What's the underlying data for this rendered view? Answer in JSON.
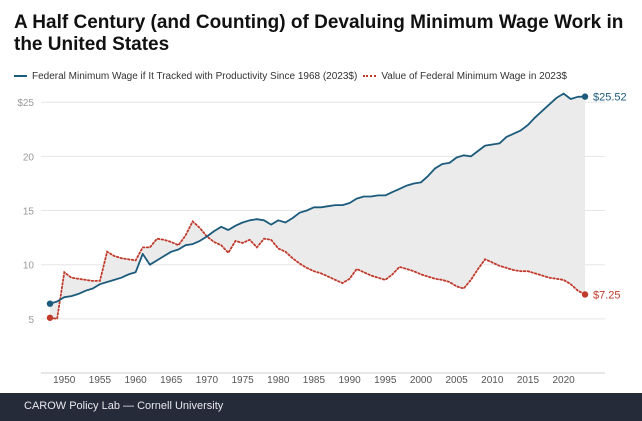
{
  "title": "A Half Century (and Counting) of Devaluing Minimum Wage Work in the United States",
  "footer": "CAROW Policy Lab — Cornell University",
  "colors": {
    "productivity": "#1c5b7c",
    "actual": "#c0392b",
    "fill": "#ebebeb",
    "grid": "#e6e6e6",
    "tick": "#9a9a9a",
    "footer_bg": "#262b3a"
  },
  "chart_data": {
    "type": "line",
    "title": "A Half Century (and Counting) of Devaluing Minimum Wage Work in the United States",
    "xlabel": "",
    "ylabel": "",
    "xlim": [
      1947.3,
      2024.4
    ],
    "ylim": [
      0,
      26.5
    ],
    "grid": true,
    "legend_position": "top-left",
    "y_ticks": [
      5,
      10,
      15,
      20,
      25
    ],
    "y_tick_labels": [
      "5",
      "10",
      "15",
      "20",
      "$25"
    ],
    "x_ticks": [
      1950,
      1955,
      1960,
      1965,
      1970,
      1975,
      1980,
      1985,
      1990,
      1995,
      2000,
      2005,
      2010,
      2015,
      2020
    ],
    "x_tick_labels": [
      "1950",
      "1955",
      "1960",
      "1965",
      "1970",
      "1975",
      "1980",
      "1985",
      "1990",
      "1995",
      "2000",
      "2005",
      "2010",
      "2015",
      "2020"
    ],
    "shaded_between_series": true,
    "series": [
      {
        "name": "Federal Minimum Wage if It Tracked with Productivity Since 1968 (2023$)",
        "style": "solid",
        "color": "#1c5b7c",
        "end_label": "$25.52",
        "x": [
          1948,
          1949,
          1950,
          1951,
          1952,
          1953,
          1954,
          1955,
          1956,
          1957,
          1958,
          1959,
          1960,
          1961,
          1962,
          1963,
          1964,
          1965,
          1966,
          1967,
          1968,
          1969,
          1970,
          1971,
          1972,
          1973,
          1974,
          1975,
          1976,
          1977,
          1978,
          1979,
          1980,
          1981,
          1982,
          1983,
          1984,
          1985,
          1986,
          1987,
          1988,
          1989,
          1990,
          1991,
          1992,
          1993,
          1994,
          1995,
          1996,
          1997,
          1998,
          1999,
          2000,
          2001,
          2002,
          2003,
          2004,
          2005,
          2006,
          2007,
          2008,
          2009,
          2010,
          2011,
          2012,
          2013,
          2014,
          2015,
          2016,
          2017,
          2018,
          2019,
          2020,
          2021,
          2022,
          2023
        ],
        "y": [
          6.4,
          6.6,
          7.0,
          7.1,
          7.3,
          7.6,
          7.8,
          8.2,
          8.4,
          8.6,
          8.8,
          9.1,
          9.3,
          11.0,
          10.0,
          10.4,
          10.8,
          11.2,
          11.4,
          11.8,
          11.9,
          12.2,
          12.6,
          13.1,
          13.5,
          13.2,
          13.6,
          13.9,
          14.1,
          14.2,
          14.1,
          13.7,
          14.1,
          13.9,
          14.3,
          14.8,
          15.0,
          15.3,
          15.3,
          15.4,
          15.5,
          15.5,
          15.7,
          16.1,
          16.3,
          16.3,
          16.4,
          16.4,
          16.7,
          17.0,
          17.3,
          17.5,
          17.6,
          18.2,
          18.9,
          19.3,
          19.4,
          19.9,
          20.1,
          20.0,
          20.5,
          21.0,
          21.1,
          21.2,
          21.8,
          22.1,
          22.4,
          22.9,
          23.6,
          24.2,
          24.8,
          25.4,
          25.8,
          25.3,
          25.5,
          25.52
        ]
      },
      {
        "name": "Value of Federal Minimum Wage in 2023$",
        "style": "dotted",
        "color": "#c0392b",
        "end_label": "$7.25",
        "x": [
          1948,
          1949,
          1950,
          1951,
          1952,
          1953,
          1954,
          1955,
          1956,
          1957,
          1958,
          1959,
          1960,
          1961,
          1962,
          1963,
          1964,
          1965,
          1966,
          1967,
          1968,
          1969,
          1970,
          1971,
          1972,
          1973,
          1974,
          1975,
          1976,
          1977,
          1978,
          1979,
          1980,
          1981,
          1982,
          1983,
          1984,
          1985,
          1986,
          1987,
          1988,
          1989,
          1990,
          1991,
          1992,
          1993,
          1994,
          1995,
          1996,
          1997,
          1998,
          1999,
          2000,
          2001,
          2002,
          2003,
          2004,
          2005,
          2006,
          2007,
          2008,
          2009,
          2010,
          2011,
          2012,
          2013,
          2014,
          2015,
          2016,
          2017,
          2018,
          2019,
          2020,
          2021,
          2022,
          2023
        ],
        "y": [
          5.1,
          5.0,
          9.3,
          8.8,
          8.7,
          8.6,
          8.5,
          8.5,
          11.2,
          10.8,
          10.6,
          10.5,
          10.4,
          11.6,
          11.6,
          12.4,
          12.3,
          12.1,
          11.8,
          12.7,
          14.0,
          13.4,
          12.6,
          12.1,
          11.8,
          11.1,
          12.2,
          12.0,
          12.3,
          11.6,
          12.4,
          12.3,
          11.5,
          11.2,
          10.6,
          10.1,
          9.7,
          9.4,
          9.2,
          8.9,
          8.6,
          8.3,
          8.7,
          9.6,
          9.3,
          9.0,
          8.8,
          8.6,
          9.1,
          9.8,
          9.6,
          9.4,
          9.1,
          8.9,
          8.7,
          8.6,
          8.4,
          8.0,
          7.8,
          8.6,
          9.6,
          10.5,
          10.2,
          9.9,
          9.7,
          9.5,
          9.4,
          9.4,
          9.2,
          9.0,
          8.8,
          8.7,
          8.6,
          8.2,
          7.6,
          7.25
        ]
      }
    ]
  }
}
